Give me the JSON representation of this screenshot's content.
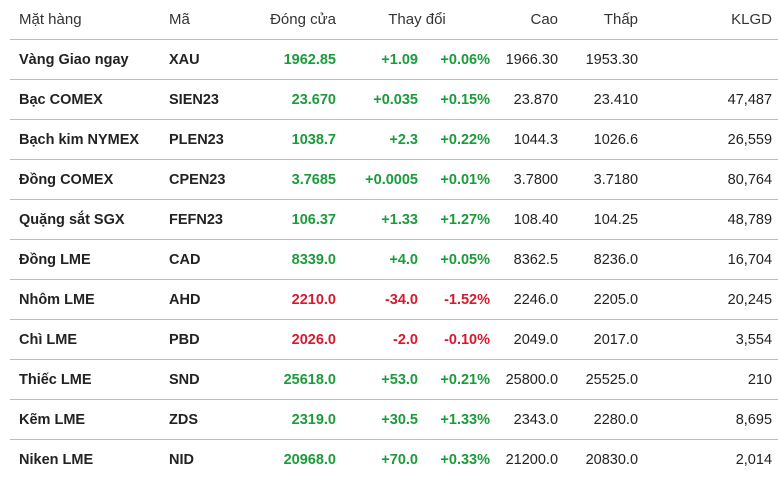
{
  "headers": {
    "name": "Mặt hàng",
    "code": "Mã",
    "close": "Đóng cửa",
    "change": "Thay đổi",
    "high": "Cao",
    "low": "Thấp",
    "volume": "KLGD"
  },
  "colors": {
    "up": "#1b9b3b",
    "down": "#d7192f"
  },
  "rows": [
    {
      "name": "Vàng Giao ngay",
      "code": "XAU",
      "close": "1962.85",
      "change": "+1.09",
      "pct": "+0.06%",
      "high": "1966.30",
      "low": "1953.30",
      "volume": "",
      "trend": "up"
    },
    {
      "name": "Bạc COMEX",
      "code": "SIEN23",
      "close": "23.670",
      "change": "+0.035",
      "pct": "+0.15%",
      "high": "23.870",
      "low": "23.410",
      "volume": "47,487",
      "trend": "up"
    },
    {
      "name": "Bạch kim NYMEX",
      "code": "PLEN23",
      "close": "1038.7",
      "change": "+2.3",
      "pct": "+0.22%",
      "high": "1044.3",
      "low": "1026.6",
      "volume": "26,559",
      "trend": "up"
    },
    {
      "name": "Đồng COMEX",
      "code": "CPEN23",
      "close": "3.7685",
      "change": "+0.0005",
      "pct": "+0.01%",
      "high": "3.7800",
      "low": "3.7180",
      "volume": "80,764",
      "trend": "up"
    },
    {
      "name": "Quặng sắt SGX",
      "code": "FEFN23",
      "close": "106.37",
      "change": "+1.33",
      "pct": "+1.27%",
      "high": "108.40",
      "low": "104.25",
      "volume": "48,789",
      "trend": "up"
    },
    {
      "name": "Đồng LME",
      "code": "CAD",
      "close": "8339.0",
      "change": "+4.0",
      "pct": "+0.05%",
      "high": "8362.5",
      "low": "8236.0",
      "volume": "16,704",
      "trend": "up"
    },
    {
      "name": "Nhôm LME",
      "code": "AHD",
      "close": "2210.0",
      "change": "-34.0",
      "pct": "-1.52%",
      "high": "2246.0",
      "low": "2205.0",
      "volume": "20,245",
      "trend": "down"
    },
    {
      "name": "Chì LME",
      "code": "PBD",
      "close": "2026.0",
      "change": "-2.0",
      "pct": "-0.10%",
      "high": "2049.0",
      "low": "2017.0",
      "volume": "3,554",
      "trend": "down"
    },
    {
      "name": "Thiếc LME",
      "code": "SND",
      "close": "25618.0",
      "change": "+53.0",
      "pct": "+0.21%",
      "high": "25800.0",
      "low": "25525.0",
      "volume": "210",
      "trend": "up"
    },
    {
      "name": "Kẽm LME",
      "code": "ZDS",
      "close": "2319.0",
      "change": "+30.5",
      "pct": "+1.33%",
      "high": "2343.0",
      "low": "2280.0",
      "volume": "8,695",
      "trend": "up"
    },
    {
      "name": "Niken LME",
      "code": "NID",
      "close": "20968.0",
      "change": "+70.0",
      "pct": "+0.33%",
      "high": "21200.0",
      "low": "20830.0",
      "volume": "2,014",
      "trend": "up"
    }
  ]
}
